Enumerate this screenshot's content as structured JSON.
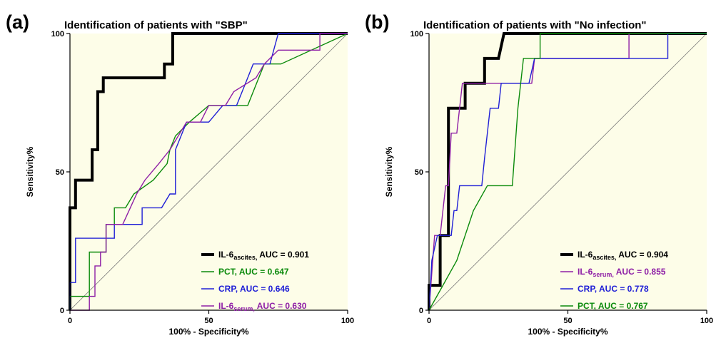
{
  "colors": {
    "plot_bg": "#fdfde8",
    "black": "#000000",
    "green": "#0b8a0b",
    "blue": "#1f1fd6",
    "purple": "#8e1fa6",
    "diagonal": "#777777"
  },
  "chart_data": [
    {
      "type": "line",
      "panel_label": "(a)",
      "title": "Identification of patients with \"SBP\"",
      "xlabel": "100% - Specificity%",
      "ylabel": "Sensitivity%",
      "xlim": [
        0,
        100
      ],
      "ylim": [
        0,
        100
      ],
      "xticks": [
        "0",
        "50",
        "100"
      ],
      "yticks": [
        "0",
        "50",
        "100"
      ],
      "reference_line": "diagonal",
      "grid": false,
      "legend_position": "bottom-right",
      "series": [
        {
          "name_main": "IL-6",
          "name_sub": "ascites,",
          "name_rest": " AUC = 0.901",
          "color": "#000000",
          "bold": true,
          "points": [
            [
              0,
              0
            ],
            [
              0,
              37
            ],
            [
              2,
              37
            ],
            [
              2,
              47
            ],
            [
              8,
              47
            ],
            [
              8,
              58
            ],
            [
              10,
              58
            ],
            [
              10,
              79
            ],
            [
              12,
              79
            ],
            [
              12,
              84
            ],
            [
              34,
              84
            ],
            [
              34,
              89
            ],
            [
              37,
              89
            ],
            [
              37,
              100
            ],
            [
              100,
              100
            ]
          ]
        },
        {
          "name_main": "PCT, AUC = 0.647",
          "name_sub": "",
          "name_rest": "",
          "color": "#0b8a0b",
          "bold": false,
          "points": [
            [
              0,
              0
            ],
            [
              0,
              5
            ],
            [
              7,
              5
            ],
            [
              7,
              21
            ],
            [
              13,
              21
            ],
            [
              13,
              31
            ],
            [
              16,
              31
            ],
            [
              16,
              37
            ],
            [
              20,
              37
            ],
            [
              23,
              42
            ],
            [
              30,
              47
            ],
            [
              35,
              53
            ],
            [
              36,
              58
            ],
            [
              38,
              63
            ],
            [
              43,
              68
            ],
            [
              50,
              74
            ],
            [
              60,
              74
            ],
            [
              64,
              74
            ],
            [
              68,
              84
            ],
            [
              70,
              89
            ],
            [
              76,
              89
            ],
            [
              100,
              100
            ]
          ]
        },
        {
          "name_main": "CRP, AUC = 0.646",
          "name_sub": "",
          "name_rest": "",
          "color": "#1f1fd6",
          "bold": false,
          "points": [
            [
              0,
              0
            ],
            [
              0,
              10
            ],
            [
              2,
              10
            ],
            [
              2,
              26
            ],
            [
              16,
              26
            ],
            [
              16,
              31
            ],
            [
              26,
              31
            ],
            [
              26,
              37
            ],
            [
              33,
              37
            ],
            [
              36,
              42
            ],
            [
              38,
              42
            ],
            [
              38,
              58
            ],
            [
              40,
              63
            ],
            [
              42,
              68
            ],
            [
              50,
              68
            ],
            [
              55,
              74
            ],
            [
              60,
              74
            ],
            [
              64,
              84
            ],
            [
              66,
              89
            ],
            [
              72,
              89
            ],
            [
              75,
              100
            ],
            [
              100,
              100
            ]
          ]
        },
        {
          "name_main": "IL-6",
          "name_sub": "serum,",
          "name_rest": " AUC = 0.630",
          "color": "#8e1fa6",
          "bold": false,
          "points": [
            [
              0,
              0
            ],
            [
              7,
              0
            ],
            [
              7,
              5
            ],
            [
              9,
              5
            ],
            [
              9,
              16
            ],
            [
              11,
              16
            ],
            [
              11,
              21
            ],
            [
              13,
              21
            ],
            [
              13,
              31
            ],
            [
              19,
              31
            ],
            [
              24,
              42
            ],
            [
              27,
              47
            ],
            [
              32,
              53
            ],
            [
              36,
              58
            ],
            [
              39,
              63
            ],
            [
              42,
              68
            ],
            [
              47,
              68
            ],
            [
              50,
              74
            ],
            [
              56,
              74
            ],
            [
              59,
              79
            ],
            [
              67,
              84
            ],
            [
              70,
              89
            ],
            [
              75,
              94
            ],
            [
              90,
              94
            ],
            [
              90,
              100
            ],
            [
              100,
              100
            ]
          ]
        }
      ]
    },
    {
      "type": "line",
      "panel_label": "(b)",
      "title": "Identification of patients with \"No infection\"",
      "xlabel": "100% - Specificity%",
      "ylabel": "Sensitivity%",
      "xlim": [
        0,
        100
      ],
      "ylim": [
        0,
        100
      ],
      "xticks": [
        "0",
        "50",
        "100"
      ],
      "yticks": [
        "0",
        "50",
        "100"
      ],
      "reference_line": "diagonal",
      "grid": false,
      "legend_position": "bottom-right",
      "series": [
        {
          "name_main": "IL-6",
          "name_sub": "ascites,",
          "name_rest": " AUC = 0.904",
          "color": "#000000",
          "bold": true,
          "points": [
            [
              0,
              0
            ],
            [
              0,
              9
            ],
            [
              4,
              9
            ],
            [
              4,
              27
            ],
            [
              7,
              27
            ],
            [
              7,
              73
            ],
            [
              13,
              73
            ],
            [
              13,
              82
            ],
            [
              20,
              82
            ],
            [
              20,
              91
            ],
            [
              25,
              91
            ],
            [
              27,
              100
            ],
            [
              100,
              100
            ]
          ]
        },
        {
          "name_main": "IL-6",
          "name_sub": "serum,",
          "name_rest": " AUC = 0.855",
          "color": "#8e1fa6",
          "bold": false,
          "points": [
            [
              0,
              0
            ],
            [
              2,
              27
            ],
            [
              4,
              27
            ],
            [
              6,
              45
            ],
            [
              7,
              45
            ],
            [
              8,
              64
            ],
            [
              10,
              64
            ],
            [
              11,
              73
            ],
            [
              12,
              82
            ],
            [
              20,
              82
            ],
            [
              25,
              82
            ],
            [
              30,
              82
            ],
            [
              37,
              82
            ],
            [
              38,
              91
            ],
            [
              72,
              91
            ],
            [
              72,
              100
            ],
            [
              100,
              100
            ]
          ]
        },
        {
          "name_main": "CRP, AUC = 0.778",
          "name_sub": "",
          "name_rest": "",
          "color": "#1f1fd6",
          "bold": false,
          "points": [
            [
              0,
              0
            ],
            [
              1,
              18
            ],
            [
              3,
              27
            ],
            [
              8,
              27
            ],
            [
              9,
              36
            ],
            [
              10,
              36
            ],
            [
              11,
              45
            ],
            [
              19,
              45
            ],
            [
              20,
              55
            ],
            [
              21,
              64
            ],
            [
              22,
              73
            ],
            [
              25,
              73
            ],
            [
              26,
              82
            ],
            [
              32,
              82
            ],
            [
              36,
              82
            ],
            [
              38,
              91
            ],
            [
              86,
              91
            ],
            [
              86,
              100
            ],
            [
              100,
              100
            ]
          ]
        },
        {
          "name_main": "PCT, AUC = 0.767",
          "name_sub": "",
          "name_rest": "",
          "color": "#0b8a0b",
          "bold": false,
          "points": [
            [
              0,
              0
            ],
            [
              5,
              9
            ],
            [
              10,
              18
            ],
            [
              16,
              36
            ],
            [
              21,
              45
            ],
            [
              30,
              45
            ],
            [
              32,
              73
            ],
            [
              33,
              82
            ],
            [
              34,
              91
            ],
            [
              40,
              91
            ],
            [
              40,
              100
            ],
            [
              100,
              100
            ]
          ]
        }
      ]
    }
  ]
}
